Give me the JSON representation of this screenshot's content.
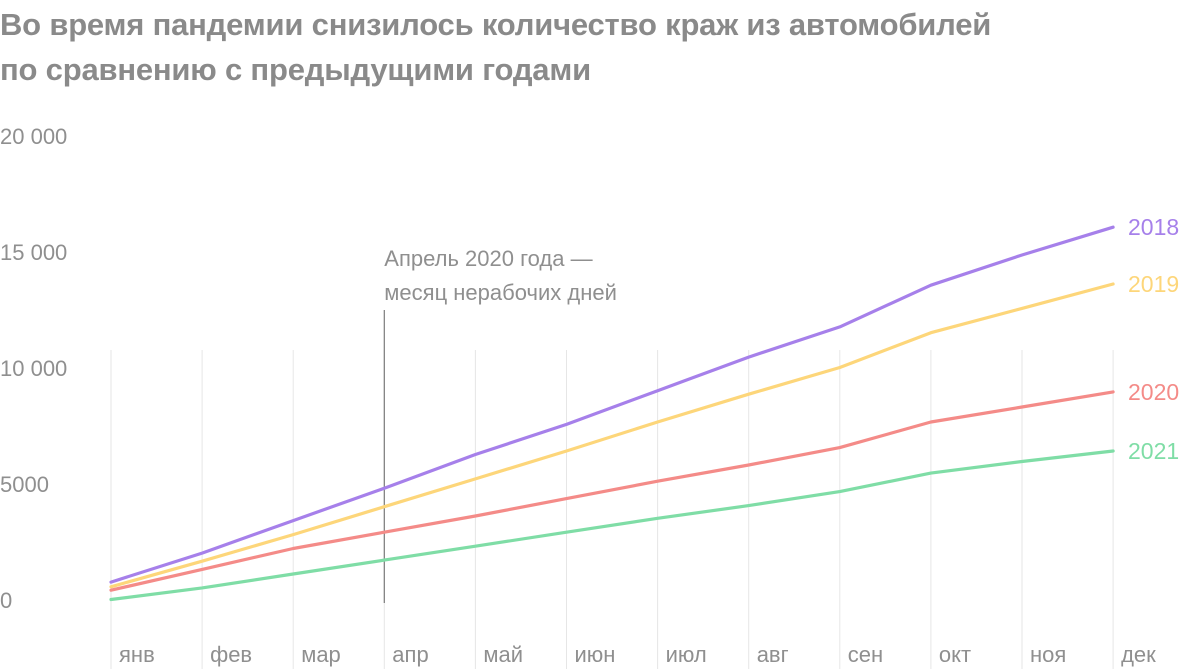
{
  "title_line1": "Во время пандемии снизилось количество краж из автомобилей",
  "title_line2": "по сравнению с предыдущими годами",
  "chart_data": {
    "type": "line",
    "title": "Во время пандемии снизилось количество краж из автомобилей по сравнению с предыдущими годами",
    "xlabel": "",
    "ylabel": "",
    "categories": [
      "янв",
      "фев",
      "мар",
      "апр",
      "май",
      "июн",
      "июл",
      "авг",
      "сен",
      "окт",
      "ноя",
      "дек"
    ],
    "y_ticks": [
      0,
      5000,
      10000,
      15000,
      20000
    ],
    "y_tick_labels": [
      "0",
      "5000",
      "10 000",
      "15 000",
      "20 000"
    ],
    "ylim": [
      0,
      20000
    ],
    "grid": "vertical",
    "legend": "labels at line ends (right)",
    "series": [
      {
        "name": "2018",
        "color": "#A680EA",
        "values": [
          900,
          2150,
          3550,
          4950,
          6400,
          7700,
          9150,
          10600,
          11900,
          13700,
          15000,
          16200
        ]
      },
      {
        "name": "2019",
        "color": "#FDD67A",
        "values": [
          700,
          1800,
          2950,
          4150,
          5350,
          6550,
          7800,
          9000,
          10150,
          11650,
          12700,
          13750
        ]
      },
      {
        "name": "2020",
        "color": "#F48B88",
        "values": [
          550,
          1450,
          2350,
          3050,
          3750,
          4500,
          5250,
          5950,
          6700,
          7800,
          8450,
          9100
        ]
      },
      {
        "name": "2021",
        "color": "#7FDDA6",
        "values": [
          150,
          650,
          1250,
          1850,
          2450,
          3050,
          3650,
          4200,
          4800,
          5600,
          6100,
          6550
        ]
      }
    ],
    "annotations": [
      {
        "text_line1": "Апрель 2020 года —",
        "text_line2": "месяц нерабочих дней",
        "x": "апр"
      }
    ]
  }
}
